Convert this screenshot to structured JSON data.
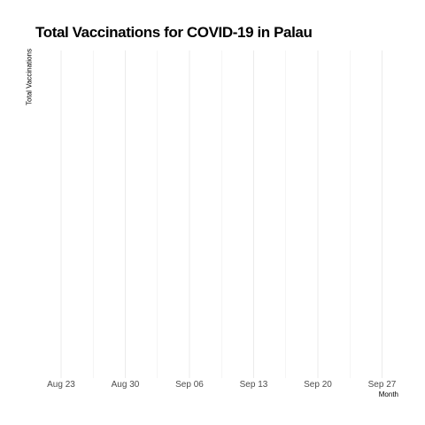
{
  "chart_data": {
    "type": "line",
    "title": "Total Vaccinations for COVID-19 in Palau",
    "xlabel": "Month",
    "ylabel": "Total Vaccinations",
    "x_ticks": [
      "Aug 23",
      "Aug 30",
      "Sep 06",
      "Sep 13",
      "Sep 20",
      "Sep 27"
    ],
    "xlim": [
      "2021-08-18",
      "2021-09-30"
    ],
    "grid": true,
    "gridline_color": "#ebebeb",
    "series": []
  }
}
